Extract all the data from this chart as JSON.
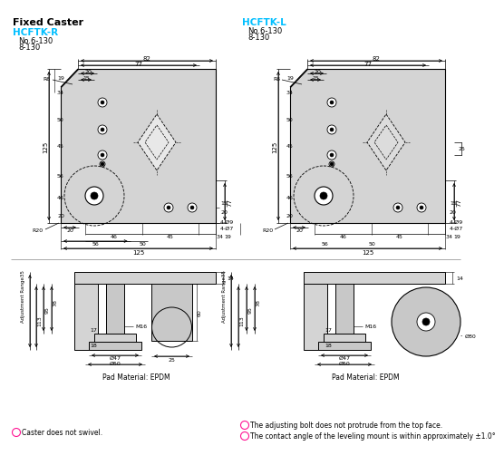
{
  "title": "Fixed Caster",
  "left_model": "HCFTK-R",
  "right_model": "HCFTK-L",
  "model_color": "#00BFFF",
  "bg_color": "#ffffff",
  "part_fill": "#d4d4d4",
  "part_fill2": "#c8c8c8",
  "magenta": "#FF1493",
  "pad_material": "Pad Material: EPDM",
  "note1": "Caster does not swivel.",
  "note2": "The adjusting bolt does not protrude from the top face.",
  "note3": "The contact angle of the leveling mount is within approximately ±1.0°"
}
